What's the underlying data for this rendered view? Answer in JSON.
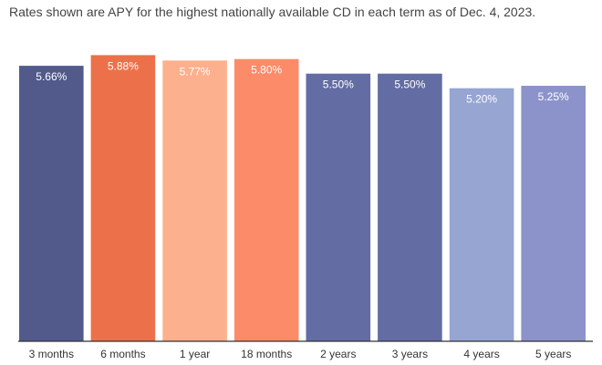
{
  "subtitle": "Rates shown are APY for the highest nationally available CD in each term as of Dec. 4, 2023.",
  "chart_data": {
    "type": "bar",
    "title": "",
    "xlabel": "",
    "ylabel": "",
    "ylim": [
      0,
      6.0
    ],
    "grid": false,
    "categories": [
      "3 months",
      "6 months",
      "1 year",
      "18 months",
      "2 years",
      "3 years",
      "4 years",
      "5 years"
    ],
    "values": [
      5.66,
      5.88,
      5.77,
      5.8,
      5.5,
      5.5,
      5.2,
      5.25
    ],
    "value_labels": [
      "5.66%",
      "5.88%",
      "5.77%",
      "5.80%",
      "5.50%",
      "5.50%",
      "5.20%",
      "5.25%"
    ],
    "colors": [
      "#525a8c",
      "#ec714a",
      "#fdb08e",
      "#fc8b69",
      "#636da4",
      "#636da4",
      "#96a5d2",
      "#8c93ca"
    ]
  }
}
